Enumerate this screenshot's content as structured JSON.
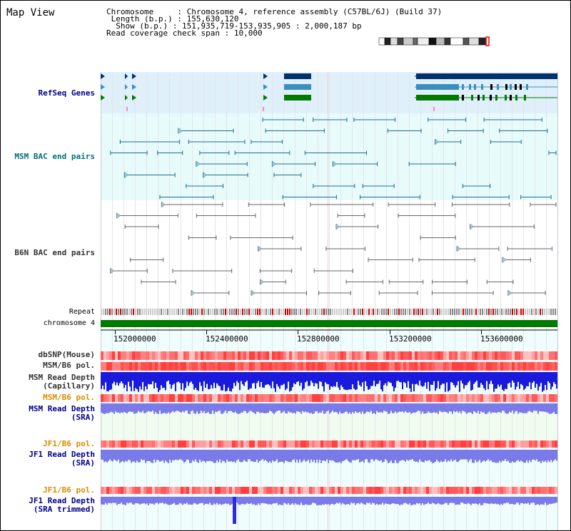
{
  "title": "Map View",
  "info": {
    "chromosome_label": "Chromosome",
    "chromosome_value": "Chromosome 4, reference assembly (C57BL/6J) (Build 37)",
    "length_label": "Length (b.p.)",
    "length_value": "155,630,120",
    "show_label": "Show (b.p.)",
    "show_value": "151,935,719-153,935,905 : 2,000,187 bp",
    "coverage_label": "Read coverage check span",
    "coverage_value": "10,000"
  },
  "tracks": {
    "refseq": "RefSeq Genes",
    "msm_bac": "MSM BAC end pairs",
    "b6n_bac": "B6N BAC end pairs",
    "repeat": "Repeat",
    "chromosome": "chromosome 4",
    "dbsnp": "dbSNP(Mouse)",
    "msm_b6_pol": "MSM/B6 pol.",
    "msm_depth_cap_1": "MSM Read Depth",
    "msm_depth_cap_2": "(Capillary)",
    "msm_b6_pol2": "MSM/B6 pol.",
    "msm_depth_sra_1": "MSM Read Depth",
    "msm_depth_sra_2": "(SRA)",
    "jf1_b6_pol": "JF1/B6 pol.",
    "jf1_depth_sra_1": "JF1 Read Depth",
    "jf1_depth_sra_2": "(SRA)",
    "jf1_b6_pol2": "JF1/B6 pol.",
    "jf1_depth_trim_1": "JF1 Read Depth",
    "jf1_depth_trim_2": "(SRA trimmed)"
  },
  "axis_ticks": [
    "152000000",
    "152400000",
    "152800000",
    "153200000",
    "153600000"
  ],
  "colors": {
    "refseq_bg": "#dff0fa",
    "bac_bg": "#e8fbfb",
    "lower_bg": "#effdfd",
    "sra_bg": "#f0fcf0",
    "refseq_label": "#00008b",
    "msm_label": "#006d7a",
    "b6n_label": "#333333",
    "pol_orange": "#d98c00",
    "depth_blue": "#0000cc"
  }
}
